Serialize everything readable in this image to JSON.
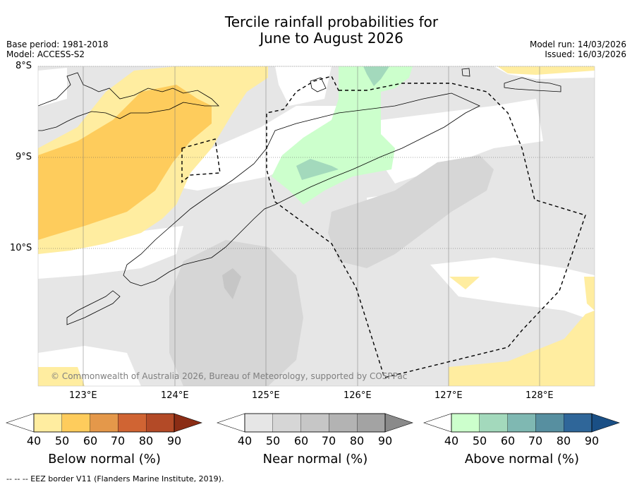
{
  "title": {
    "line1": "Tercile rainfall probabilities for",
    "line2": "June to August 2026"
  },
  "meta": {
    "base_period": "Base period: 1981-2018",
    "model": "Model: ACCESS-S2",
    "model_run": "Model run: 14/03/2026",
    "issued": "Issued: 16/03/2026"
  },
  "map": {
    "lat_labels": [
      "8°S",
      "9°S",
      "10°S"
    ],
    "lon_labels": [
      "123°E",
      "124°E",
      "125°E",
      "126°E",
      "127°E",
      "128°E"
    ],
    "copyright": "© Commonwealth of Australia 2026, Bureau of Meteorology, supported by COSPPac"
  },
  "colorbars": {
    "below": {
      "label": "Below normal (%)",
      "ticks": [
        "40",
        "50",
        "60",
        "70",
        "80",
        "90"
      ],
      "colors": [
        "#ffeda0",
        "#fecc5c",
        "#e4984a",
        "#d06433",
        "#b34a27",
        "#8b2d15"
      ]
    },
    "near": {
      "label": "Near normal (%)",
      "ticks": [
        "40",
        "50",
        "60",
        "70",
        "80",
        "90"
      ],
      "colors": [
        "#e6e6e6",
        "#d6d6d6",
        "#c6c6c6",
        "#b3b3b3",
        "#a3a3a3",
        "#8a8a8a"
      ]
    },
    "above": {
      "label": "Above normal (%)",
      "ticks": [
        "40",
        "50",
        "60",
        "70",
        "80",
        "90"
      ],
      "colors": [
        "#ccffcc",
        "#a3d9bc",
        "#7fb8b2",
        "#578fa0",
        "#2f6699",
        "#1a4f85"
      ]
    }
  },
  "footer": {
    "legend_text": "--  --  -- EEZ border V11 (Flanders Marine Institute, 2019)."
  }
}
